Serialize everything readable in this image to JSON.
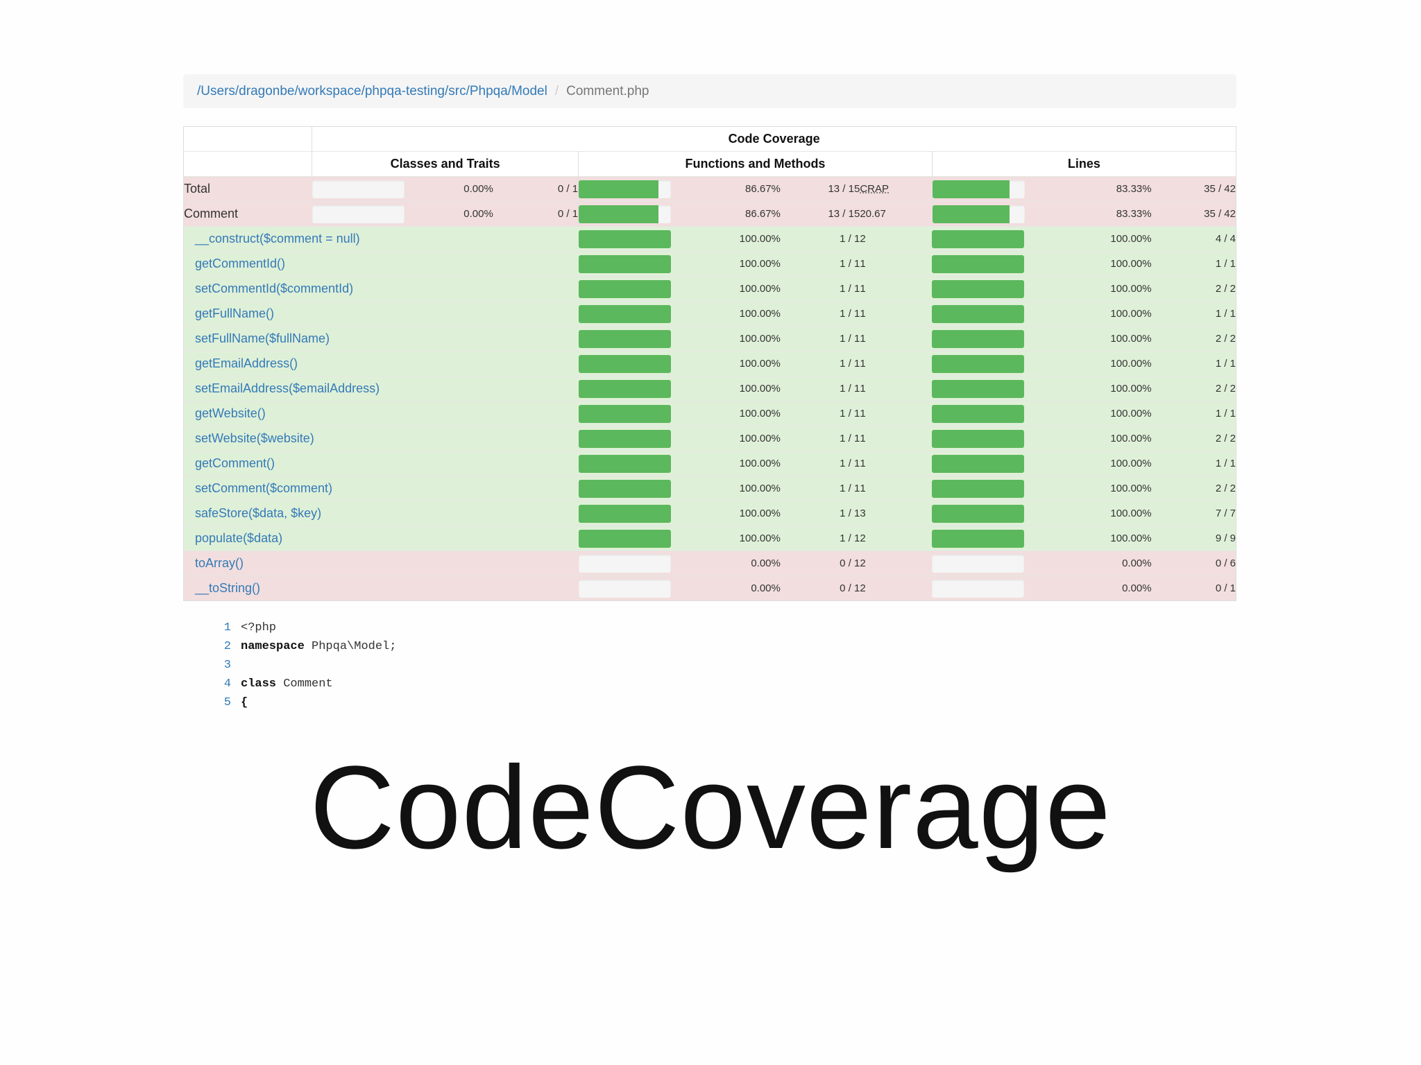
{
  "breadcrumb": {
    "path": "/Users/dragonbe/workspace/phpqa-testing/src/Phpqa/Model",
    "separator": "/",
    "file": "Comment.php"
  },
  "table": {
    "header_main": "Code Coverage",
    "header_classes": "Classes and Traits",
    "header_functions": "Functions and Methods",
    "header_lines": "Lines",
    "crap_label": "CRAP",
    "summary_rows": [
      {
        "name": "Total",
        "cls_bar": 0,
        "cls_pct": "0.00%",
        "cls_cnt": "0 / 1",
        "fn_bar": 86.67,
        "fn_pct": "86.67%",
        "fn_cnt": "13 / 15",
        "crap": "",
        "ln_bar": 83.33,
        "ln_pct": "83.33%",
        "ln_cnt": "35 / 42"
      },
      {
        "name": "Comment",
        "cls_bar": 0,
        "cls_pct": "0.00%",
        "cls_cnt": "0 / 1",
        "fn_bar": 86.67,
        "fn_pct": "86.67%",
        "fn_cnt": "13 / 15",
        "crap": "20.67",
        "ln_bar": 83.33,
        "ln_pct": "83.33%",
        "ln_cnt": "35 / 42"
      }
    ],
    "methods": [
      {
        "name": "__construct($comment = null)",
        "fn_bar": 100,
        "fn_pct": "100.00%",
        "fn_cnt": "1 / 1",
        "crap": "2",
        "ln_bar": 100,
        "ln_pct": "100.00%",
        "ln_cnt": "4 / 4"
      },
      {
        "name": "getCommentId()",
        "fn_bar": 100,
        "fn_pct": "100.00%",
        "fn_cnt": "1 / 1",
        "crap": "1",
        "ln_bar": 100,
        "ln_pct": "100.00%",
        "ln_cnt": "1 / 1"
      },
      {
        "name": "setCommentId($commentId)",
        "fn_bar": 100,
        "fn_pct": "100.00%",
        "fn_cnt": "1 / 1",
        "crap": "1",
        "ln_bar": 100,
        "ln_pct": "100.00%",
        "ln_cnt": "2 / 2"
      },
      {
        "name": "getFullName()",
        "fn_bar": 100,
        "fn_pct": "100.00%",
        "fn_cnt": "1 / 1",
        "crap": "1",
        "ln_bar": 100,
        "ln_pct": "100.00%",
        "ln_cnt": "1 / 1"
      },
      {
        "name": "setFullName($fullName)",
        "fn_bar": 100,
        "fn_pct": "100.00%",
        "fn_cnt": "1 / 1",
        "crap": "1",
        "ln_bar": 100,
        "ln_pct": "100.00%",
        "ln_cnt": "2 / 2"
      },
      {
        "name": "getEmailAddress()",
        "fn_bar": 100,
        "fn_pct": "100.00%",
        "fn_cnt": "1 / 1",
        "crap": "1",
        "ln_bar": 100,
        "ln_pct": "100.00%",
        "ln_cnt": "1 / 1"
      },
      {
        "name": "setEmailAddress($emailAddress)",
        "fn_bar": 100,
        "fn_pct": "100.00%",
        "fn_cnt": "1 / 1",
        "crap": "1",
        "ln_bar": 100,
        "ln_pct": "100.00%",
        "ln_cnt": "2 / 2"
      },
      {
        "name": "getWebsite()",
        "fn_bar": 100,
        "fn_pct": "100.00%",
        "fn_cnt": "1 / 1",
        "crap": "1",
        "ln_bar": 100,
        "ln_pct": "100.00%",
        "ln_cnt": "1 / 1"
      },
      {
        "name": "setWebsite($website)",
        "fn_bar": 100,
        "fn_pct": "100.00%",
        "fn_cnt": "1 / 1",
        "crap": "1",
        "ln_bar": 100,
        "ln_pct": "100.00%",
        "ln_cnt": "2 / 2"
      },
      {
        "name": "getComment()",
        "fn_bar": 100,
        "fn_pct": "100.00%",
        "fn_cnt": "1 / 1",
        "crap": "1",
        "ln_bar": 100,
        "ln_pct": "100.00%",
        "ln_cnt": "1 / 1"
      },
      {
        "name": "setComment($comment)",
        "fn_bar": 100,
        "fn_pct": "100.00%",
        "fn_cnt": "1 / 1",
        "crap": "1",
        "ln_bar": 100,
        "ln_pct": "100.00%",
        "ln_cnt": "2 / 2"
      },
      {
        "name": "safeStore($data, $key)",
        "fn_bar": 100,
        "fn_pct": "100.00%",
        "fn_cnt": "1 / 1",
        "crap": "3",
        "ln_bar": 100,
        "ln_pct": "100.00%",
        "ln_cnt": "7 / 7"
      },
      {
        "name": "populate($data)",
        "fn_bar": 100,
        "fn_pct": "100.00%",
        "fn_cnt": "1 / 1",
        "crap": "2",
        "ln_bar": 100,
        "ln_pct": "100.00%",
        "ln_cnt": "9 / 9"
      },
      {
        "name": "toArray()",
        "fn_bar": 0,
        "fn_pct": "0.00%",
        "fn_cnt": "0 / 1",
        "crap": "2",
        "ln_bar": 0,
        "ln_pct": "0.00%",
        "ln_cnt": "0 / 6"
      },
      {
        "name": "__toString()",
        "fn_bar": 0,
        "fn_pct": "0.00%",
        "fn_cnt": "0 / 1",
        "crap": "2",
        "ln_bar": 0,
        "ln_pct": "0.00%",
        "ln_cnt": "0 / 1"
      }
    ]
  },
  "code": [
    {
      "num": "1",
      "kw": "",
      "text": "<?php"
    },
    {
      "num": "2",
      "kw": "namespace",
      "text": " Phpqa\\Model;"
    },
    {
      "num": "3",
      "kw": "",
      "text": ""
    },
    {
      "num": "4",
      "kw": "class",
      "text": " Comment"
    },
    {
      "num": "5",
      "kw": "{",
      "text": ""
    }
  ],
  "slide_title": "CodeCoverage",
  "colors": {
    "success_bg": "#dff0d8",
    "danger_bg": "#f2dede",
    "bar_fill": "#5cb85c",
    "link": "#337ab7"
  }
}
